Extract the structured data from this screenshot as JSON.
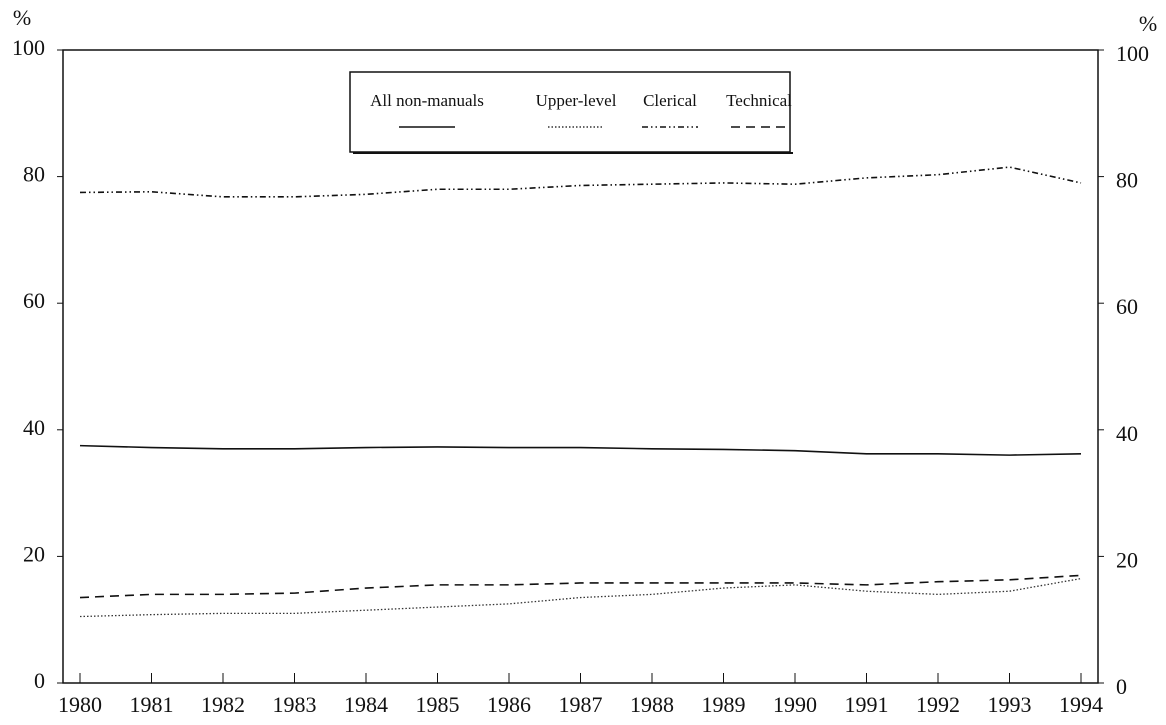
{
  "chart_data": {
    "type": "line",
    "ylabel": "%",
    "y2label": "%",
    "categories": [
      "1980",
      "1981",
      "1982",
      "1983",
      "1984",
      "1985",
      "1986",
      "1987",
      "1988",
      "1989",
      "1990",
      "1991",
      "1992",
      "1993",
      "1994"
    ],
    "series": [
      {
        "name": "All non-manuals",
        "color": "#111111",
        "style": "solid",
        "values": [
          37.5,
          37.2,
          37,
          37,
          37.2,
          37.3,
          37.2,
          37.2,
          37,
          36.9,
          36.7,
          36.2,
          36.2,
          36,
          36.2
        ]
      },
      {
        "name": "Upper-level",
        "color": "#333333",
        "style": "dotted",
        "values": [
          10.5,
          10.8,
          11,
          11,
          11.5,
          12,
          12.5,
          13.5,
          14,
          15,
          15.5,
          14.5,
          14,
          14.5,
          16.5
        ]
      },
      {
        "name": "Clerical",
        "color": "#111111",
        "style": "dashdot",
        "values": [
          77.5,
          77.6,
          76.8,
          76.8,
          77.2,
          78,
          78,
          78.6,
          78.8,
          79,
          78.8,
          79.8,
          80.3,
          81.5,
          79
        ]
      },
      {
        "name": "Technical",
        "color": "#111111",
        "style": "dashed",
        "values": [
          13.5,
          14,
          14,
          14.2,
          15,
          15.5,
          15.5,
          15.8,
          15.8,
          15.8,
          15.8,
          15.5,
          16,
          16.3,
          17
        ]
      }
    ],
    "ylim": [
      0,
      100
    ],
    "yticks": [
      0,
      20,
      40,
      60,
      80,
      100
    ],
    "y2lim": [
      0,
      100
    ],
    "y2ticks": [
      0,
      20,
      40,
      60,
      80,
      100
    ],
    "legend": "top"
  }
}
